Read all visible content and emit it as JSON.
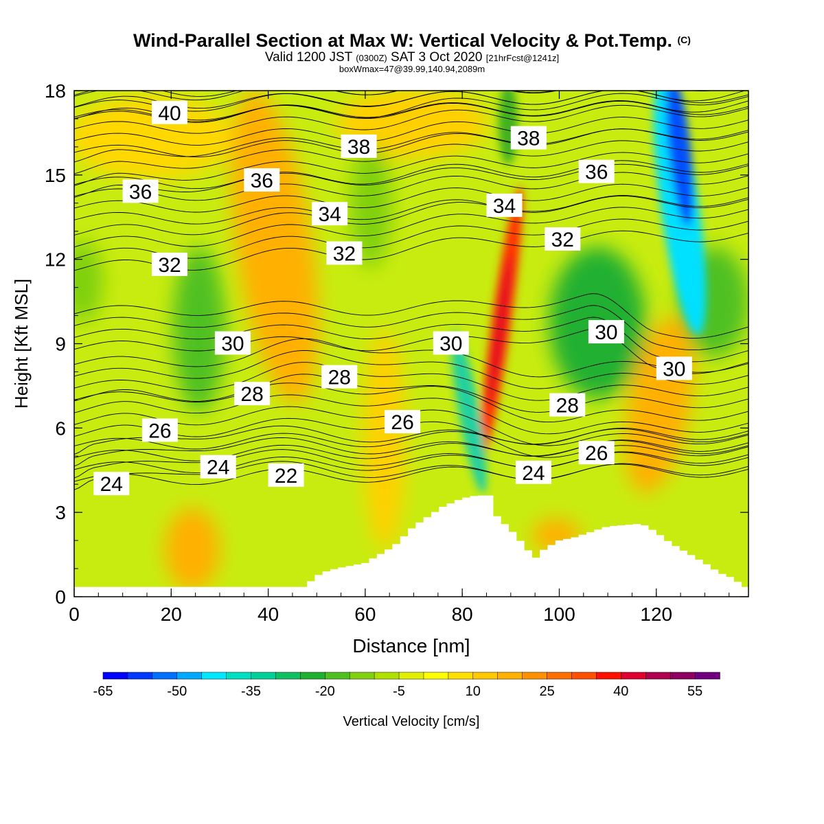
{
  "title": {
    "main": "Wind-Parallel Section at Max W: Vertical Velocity & Pot.Temp.",
    "main_mark": "(C)",
    "valid_a": "Valid 1200 JST",
    "valid_utc": "(0300Z)",
    "valid_b": "SAT 3 Oct 2020",
    "fcst": "[21hrFcst@1241z]",
    "box": "boxWmax=47@39.99,140.94,2089m"
  },
  "chart_data": {
    "type": "heatmap",
    "xlabel": "Distance [nm]",
    "ylabel": "Height [Kft MSL]",
    "xlim": [
      0,
      139
    ],
    "ylim": [
      0,
      18
    ],
    "x_ticks": [
      0,
      20,
      40,
      60,
      80,
      100,
      120
    ],
    "y_ticks": [
      0,
      3,
      6,
      9,
      12,
      15,
      18
    ],
    "colorbar": {
      "label": "Vertical Velocity [cm/s]",
      "min": -65,
      "step": 5,
      "tick_labels": [
        "-65",
        "-50",
        "-35",
        "-20",
        "-5",
        "10",
        "25",
        "40",
        "55"
      ],
      "colors": [
        "#0000ff",
        "#0038ff",
        "#0070ff",
        "#00a8ff",
        "#00e8ff",
        "#00e0c0",
        "#00d098",
        "#10c060",
        "#20b030",
        "#50c020",
        "#80d010",
        "#b0e000",
        "#e0f000",
        "#ffff00",
        "#ffe000",
        "#ffc800",
        "#ffb000",
        "#ff9000",
        "#ff7000",
        "#ff5000",
        "#ff1000",
        "#e00030",
        "#b00050",
        "#900060",
        "#700080"
      ]
    },
    "velocity_features": [
      {
        "x": 126,
        "y": 15.5,
        "value": -65
      },
      {
        "x": 87,
        "y": 9.0,
        "value": 45
      },
      {
        "x": 81,
        "y": 6.5,
        "value": -35
      },
      {
        "x": 122,
        "y": 6.5,
        "value": 25
      },
      {
        "x": 43,
        "y": 10.0,
        "value": 25
      },
      {
        "x": 26,
        "y": 9.5,
        "value": -15
      },
      {
        "x": 105,
        "y": 9.5,
        "value": -20
      }
    ],
    "terrain": [
      [
        0,
        0.35
      ],
      [
        48,
        0.35
      ],
      [
        49,
        0.6
      ],
      [
        51,
        0.85
      ],
      [
        54,
        1.0
      ],
      [
        60,
        1.2
      ],
      [
        66,
        1.8
      ],
      [
        70,
        2.5
      ],
      [
        76,
        3.2
      ],
      [
        80,
        3.5
      ],
      [
        83,
        3.6
      ],
      [
        85,
        3.6
      ],
      [
        86,
        3.6
      ],
      [
        87,
        2.9
      ],
      [
        91,
        2.2
      ],
      [
        95,
        1.35
      ],
      [
        97,
        1.7
      ],
      [
        100,
        2.0
      ],
      [
        103,
        2.1
      ],
      [
        110,
        2.5
      ],
      [
        117,
        2.6
      ],
      [
        120,
        2.3
      ],
      [
        123,
        1.9
      ],
      [
        126,
        1.6
      ],
      [
        130,
        1.2
      ],
      [
        133,
        0.85
      ],
      [
        136,
        0.65
      ],
      [
        138,
        0.35
      ],
      [
        139,
        0.35
      ]
    ],
    "isentropes": [
      {
        "theta": 22,
        "label_x": 40,
        "label_y": 4.3
      },
      {
        "theta": 24,
        "label_x": 4,
        "label_y": 4.0
      },
      {
        "theta": 24,
        "label_x": 26,
        "label_y": 4.6
      },
      {
        "theta": 24,
        "label_x": 91,
        "label_y": 4.4
      },
      {
        "theta": 26,
        "label_x": 14,
        "label_y": 5.9
      },
      {
        "theta": 26,
        "label_x": 64,
        "label_y": 6.2
      },
      {
        "theta": 26,
        "label_x": 104,
        "label_y": 5.1
      },
      {
        "theta": 28,
        "label_x": 33,
        "label_y": 7.2
      },
      {
        "theta": 28,
        "label_x": 51,
        "label_y": 7.8
      },
      {
        "theta": 28,
        "label_x": 98,
        "label_y": 6.8
      },
      {
        "theta": 30,
        "label_x": 29,
        "label_y": 9.0
      },
      {
        "theta": 30,
        "label_x": 74,
        "label_y": 9.0
      },
      {
        "theta": 30,
        "label_x": 106,
        "label_y": 9.4
      },
      {
        "theta": 30,
        "label_x": 120,
        "label_y": 8.1
      },
      {
        "theta": 32,
        "label_x": 16,
        "label_y": 11.8
      },
      {
        "theta": 32,
        "label_x": 52,
        "label_y": 12.2
      },
      {
        "theta": 32,
        "label_x": 97,
        "label_y": 12.7
      },
      {
        "theta": 34,
        "label_x": 49,
        "label_y": 13.6
      },
      {
        "theta": 34,
        "label_x": 85,
        "label_y": 13.9
      },
      {
        "theta": 36,
        "label_x": 10,
        "label_y": 14.4
      },
      {
        "theta": 36,
        "label_x": 35,
        "label_y": 14.8
      },
      {
        "theta": 36,
        "label_x": 104,
        "label_y": 15.1
      },
      {
        "theta": 38,
        "label_x": 55,
        "label_y": 16.0
      },
      {
        "theta": 38,
        "label_x": 90,
        "label_y": 16.3
      },
      {
        "theta": 40,
        "label_x": 16,
        "label_y": 17.2
      }
    ]
  }
}
